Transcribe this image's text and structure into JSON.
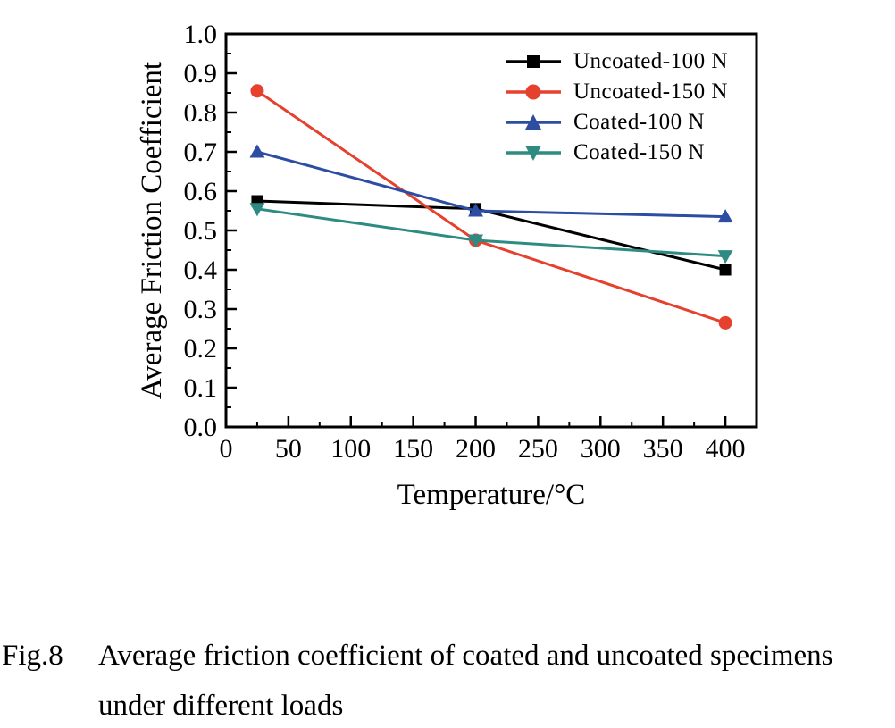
{
  "figure": {
    "label": "Fig.8",
    "caption_line1": "Average friction coefficient of coated and uncoated specimens",
    "caption_line2": "under different loads"
  },
  "chart_data": {
    "type": "line",
    "title": "",
    "xlabel": "Temperature/°C",
    "ylabel": "Average Friction Coefficient",
    "xlim": [
      0,
      425
    ],
    "ylim": [
      0.0,
      1.0
    ],
    "x_major_ticks": [
      0,
      50,
      100,
      150,
      200,
      250,
      300,
      350,
      400
    ],
    "x_minor_ticks": [
      25,
      75,
      125,
      175,
      225,
      275,
      325,
      375
    ],
    "y_major_ticks": [
      "0.0",
      "0.1",
      "0.2",
      "0.3",
      "0.4",
      "0.5",
      "0.6",
      "0.7",
      "0.8",
      "0.9",
      "1.0"
    ],
    "y_minor_step": 0.05,
    "grid": false,
    "legend_position": "top-right-inside",
    "frame_color": "#000000",
    "x": [
      25,
      200,
      400
    ],
    "series": [
      {
        "name": "Uncoated-100 N",
        "color": "#000000",
        "marker": "square",
        "values": [
          0.575,
          0.555,
          0.4
        ]
      },
      {
        "name": "Uncoated-150 N",
        "color": "#e6402e",
        "marker": "circle",
        "values": [
          0.855,
          0.475,
          0.265
        ]
      },
      {
        "name": "Coated-100 N",
        "color": "#2d4da3",
        "marker": "triangle-up",
        "values": [
          0.7,
          0.55,
          0.535
        ]
      },
      {
        "name": "Coated-150 N",
        "color": "#2d8b82",
        "marker": "triangle-down",
        "values": [
          0.555,
          0.475,
          0.435
        ]
      }
    ]
  }
}
